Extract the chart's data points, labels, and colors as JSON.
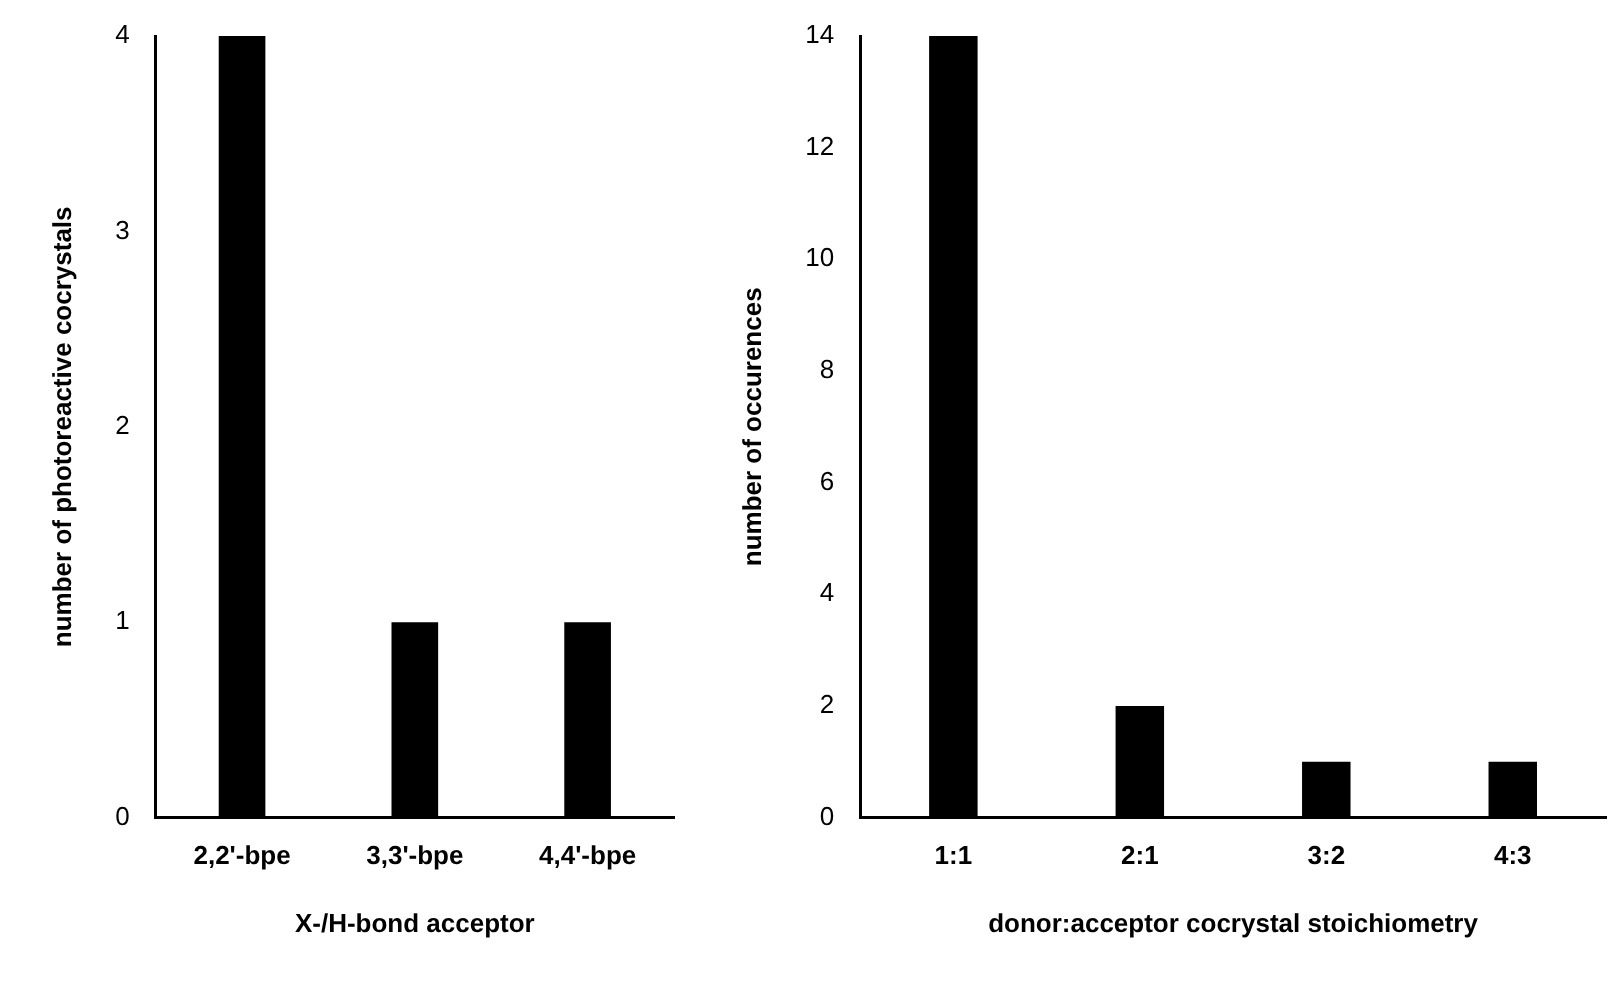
{
  "chart_data": [
    {
      "type": "bar",
      "categories": [
        "2,2'-bpe",
        "3,3'-bpe",
        "4,4'-bpe"
      ],
      "values": [
        4,
        1,
        1
      ],
      "color": "#000000",
      "ylim": [
        0,
        4
      ],
      "yticks": [
        0,
        1,
        2,
        3,
        4
      ],
      "xlabel": "X-/H-bond acceptor",
      "ylabel": "number of photoreactive cocrystals"
    },
    {
      "type": "bar",
      "categories": [
        "1:1",
        "2:1",
        "3:2",
        "4:3"
      ],
      "values": [
        14,
        2,
        1,
        1
      ],
      "color": "#000000",
      "ylim": [
        0,
        14
      ],
      "yticks": [
        0,
        2,
        4,
        6,
        8,
        10,
        12,
        14
      ],
      "xlabel": "donor:acceptor cocrystal stoichiometry",
      "ylabel": "number of occurences"
    }
  ]
}
